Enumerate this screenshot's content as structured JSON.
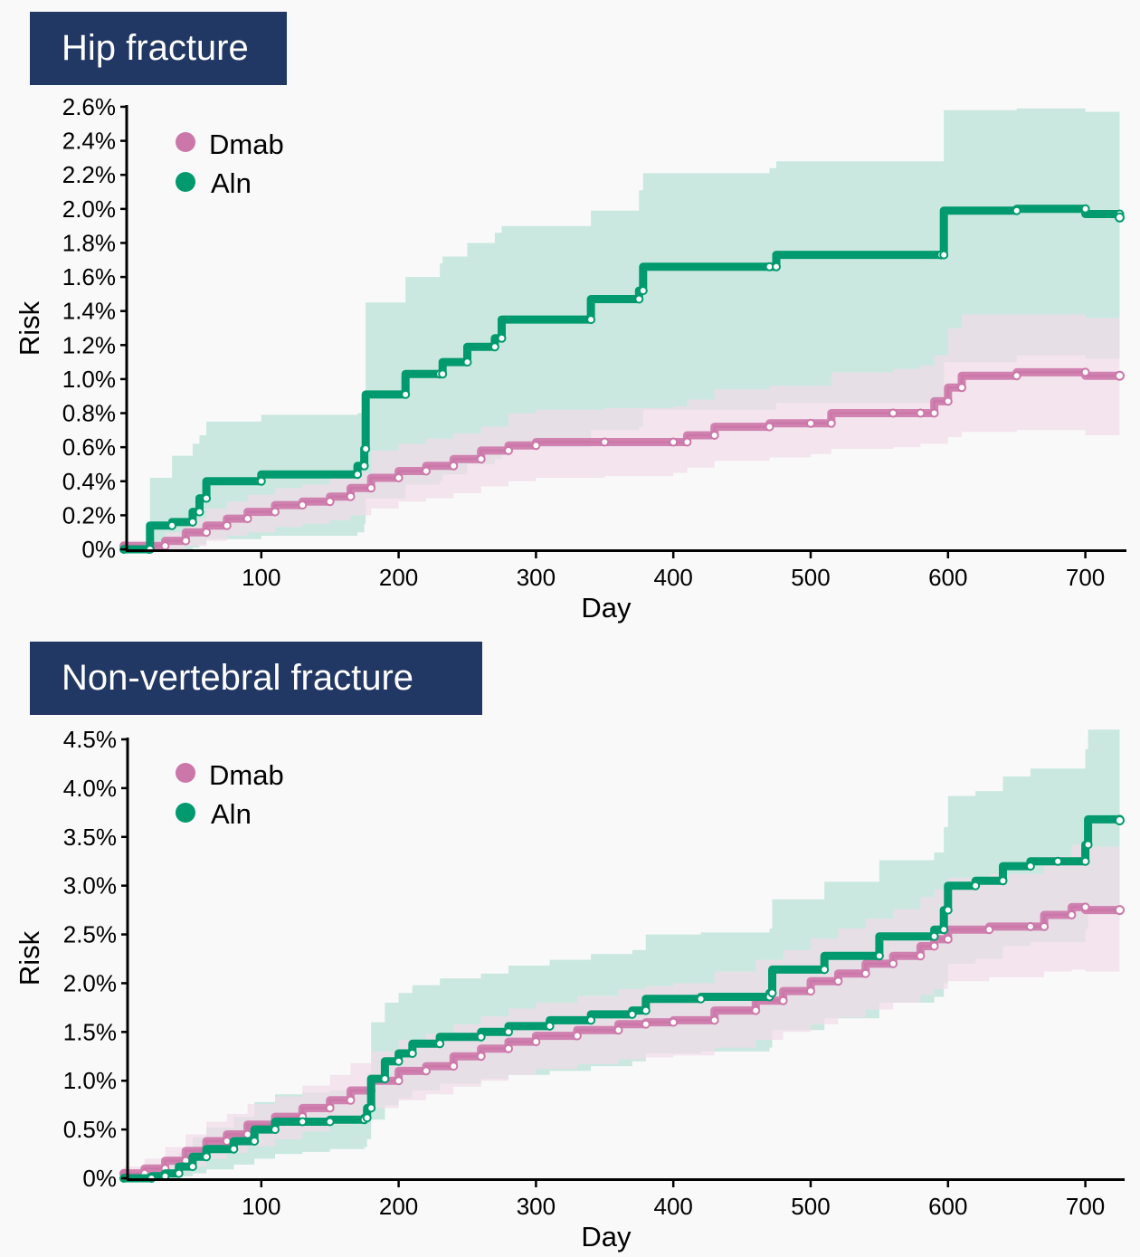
{
  "colors": {
    "title_bg": "#213764",
    "dmab": "#cc77a9",
    "dmab_band": "#f0dce8",
    "aln": "#009a6e",
    "aln_band": "#c7e7de"
  },
  "chart_data": [
    {
      "type": "line",
      "title": "Hip fracture",
      "xlabel": "Day",
      "ylabel": "Risk",
      "xlim": [
        0,
        730
      ],
      "ylim": [
        0,
        2.6
      ],
      "x_ticks": [
        100,
        200,
        300,
        400,
        500,
        600,
        700
      ],
      "x_tick_labels": [
        "100",
        "200",
        "300",
        "400",
        "500",
        "600",
        "700"
      ],
      "y_ticks": [
        0,
        0.2,
        0.4,
        0.6,
        0.8,
        1.0,
        1.2,
        1.4,
        1.6,
        1.8,
        2.0,
        2.2,
        2.4,
        2.6
      ],
      "y_tick_labels": [
        "0%",
        "0.2%",
        "0.4%",
        "0.6%",
        "0.8%",
        "1.0%",
        "1.2%",
        "1.4%",
        "1.6%",
        "1.8%",
        "2.0%",
        "2.2%",
        "2.4%",
        "2.6%"
      ],
      "grid": false,
      "legend": {
        "position": "top-left",
        "entries": [
          "Dmab",
          "Aln"
        ]
      },
      "series": [
        {
          "name": "Dmab",
          "x": [
            0,
            20,
            30,
            45,
            60,
            75,
            90,
            110,
            130,
            150,
            165,
            180,
            200,
            220,
            240,
            260,
            280,
            300,
            350,
            400,
            410,
            430,
            470,
            500,
            515,
            560,
            580,
            590,
            600,
            610,
            650,
            700,
            725
          ],
          "y": [
            0.02,
            0.02,
            0.05,
            0.1,
            0.14,
            0.18,
            0.22,
            0.26,
            0.28,
            0.31,
            0.36,
            0.42,
            0.46,
            0.49,
            0.53,
            0.58,
            0.61,
            0.63,
            0.63,
            0.63,
            0.67,
            0.72,
            0.74,
            0.74,
            0.8,
            0.8,
            0.8,
            0.87,
            0.95,
            1.02,
            1.04,
            1.02,
            1.02
          ],
          "ci_low": [
            0.0,
            0.0,
            0.0,
            0.02,
            0.05,
            0.08,
            0.1,
            0.13,
            0.15,
            0.17,
            0.2,
            0.24,
            0.28,
            0.3,
            0.33,
            0.37,
            0.4,
            0.42,
            0.43,
            0.45,
            0.48,
            0.52,
            0.54,
            0.56,
            0.59,
            0.6,
            0.62,
            0.62,
            0.66,
            0.69,
            0.7,
            0.67,
            0.67
          ],
          "ci_high": [
            0.05,
            0.05,
            0.1,
            0.18,
            0.24,
            0.28,
            0.32,
            0.36,
            0.38,
            0.42,
            0.45,
            0.58,
            0.62,
            0.65,
            0.68,
            0.72,
            0.8,
            0.82,
            0.83,
            0.84,
            0.88,
            0.94,
            0.96,
            0.96,
            1.04,
            1.06,
            1.08,
            1.14,
            1.3,
            1.38,
            1.38,
            1.36,
            1.36
          ]
        },
        {
          "name": "Aln",
          "x": [
            0,
            18,
            19,
            35,
            50,
            55,
            60,
            100,
            170,
            175,
            176,
            205,
            230,
            232,
            250,
            270,
            275,
            340,
            375,
            378,
            470,
            475,
            595,
            597,
            650,
            700,
            725
          ],
          "y": [
            0.0,
            0.0,
            0.14,
            0.16,
            0.22,
            0.3,
            0.4,
            0.44,
            0.49,
            0.59,
            0.91,
            1.03,
            1.03,
            1.1,
            1.19,
            1.24,
            1.35,
            1.47,
            1.52,
            1.66,
            1.66,
            1.73,
            1.73,
            1.99,
            2.0,
            1.97,
            1.95
          ],
          "ci_low": [
            0.0,
            0.0,
            0.0,
            0.0,
            0.01,
            0.03,
            0.06,
            0.08,
            0.1,
            0.15,
            0.3,
            0.38,
            0.4,
            0.44,
            0.5,
            0.53,
            0.6,
            0.7,
            0.72,
            0.82,
            0.82,
            0.86,
            0.85,
            1.1,
            1.14,
            1.12,
            1.08
          ],
          "ci_high": [
            0.0,
            0.0,
            0.42,
            0.55,
            0.62,
            0.67,
            0.75,
            0.79,
            0.8,
            0.8,
            1.45,
            1.6,
            1.68,
            1.72,
            1.8,
            1.86,
            1.9,
            1.99,
            2.11,
            2.21,
            2.24,
            2.28,
            2.28,
            2.58,
            2.59,
            2.57,
            2.55
          ]
        }
      ]
    },
    {
      "type": "line",
      "title": "Non-vertebral fracture",
      "xlabel": "Day",
      "ylabel": "Risk",
      "xlim": [
        0,
        730
      ],
      "ylim": [
        0,
        4.5
      ],
      "x_ticks": [
        100,
        200,
        300,
        400,
        500,
        600,
        700
      ],
      "x_tick_labels": [
        "100",
        "200",
        "300",
        "400",
        "500",
        "600",
        "700"
      ],
      "y_ticks": [
        0,
        0.5,
        1.0,
        1.5,
        2.0,
        2.5,
        3.0,
        3.5,
        4.0,
        4.5
      ],
      "y_tick_labels": [
        "0%",
        "0.5%",
        "1.0%",
        "1.5%",
        "2.0%",
        "2.5%",
        "3.0%",
        "3.5%",
        "4.0%",
        "4.5%"
      ],
      "grid": false,
      "legend": {
        "position": "top-left",
        "entries": [
          "Dmab",
          "Aln"
        ]
      },
      "series": [
        {
          "name": "Dmab",
          "x": [
            0,
            15,
            30,
            45,
            60,
            75,
            90,
            110,
            130,
            150,
            165,
            180,
            200,
            220,
            240,
            260,
            280,
            300,
            330,
            360,
            380,
            400,
            430,
            460,
            480,
            500,
            520,
            540,
            560,
            580,
            590,
            600,
            630,
            660,
            670,
            690,
            700,
            725
          ],
          "y": [
            0.05,
            0.1,
            0.18,
            0.28,
            0.38,
            0.45,
            0.55,
            0.63,
            0.72,
            0.8,
            0.9,
            1.0,
            1.1,
            1.15,
            1.25,
            1.33,
            1.4,
            1.46,
            1.52,
            1.58,
            1.6,
            1.62,
            1.72,
            1.82,
            1.92,
            2.02,
            2.1,
            2.2,
            2.28,
            2.38,
            2.45,
            2.55,
            2.58,
            2.58,
            2.7,
            2.78,
            2.75,
            2.75
          ],
          "ci_low": [
            0.0,
            0.02,
            0.06,
            0.12,
            0.2,
            0.26,
            0.33,
            0.4,
            0.48,
            0.55,
            0.62,
            0.72,
            0.8,
            0.86,
            0.94,
            1.0,
            1.06,
            1.12,
            1.17,
            1.22,
            1.24,
            1.26,
            1.34,
            1.42,
            1.5,
            1.58,
            1.65,
            1.73,
            1.8,
            1.88,
            1.94,
            2.02,
            2.06,
            2.06,
            2.12,
            2.14,
            2.12,
            2.12
          ],
          "ci_high": [
            0.12,
            0.2,
            0.32,
            0.45,
            0.58,
            0.66,
            0.76,
            0.84,
            0.95,
            1.06,
            1.18,
            1.3,
            1.42,
            1.48,
            1.58,
            1.66,
            1.74,
            1.8,
            1.87,
            1.94,
            1.97,
            2.0,
            2.12,
            2.24,
            2.34,
            2.46,
            2.56,
            2.66,
            2.76,
            2.88,
            2.96,
            3.08,
            3.12,
            3.12,
            3.3,
            3.42,
            3.4,
            3.4
          ]
        },
        {
          "name": "Aln",
          "x": [
            0,
            20,
            30,
            40,
            50,
            60,
            80,
            95,
            110,
            130,
            150,
            175,
            177,
            180,
            190,
            200,
            210,
            230,
            260,
            280,
            310,
            340,
            370,
            380,
            420,
            470,
            472,
            510,
            550,
            590,
            597,
            600,
            620,
            640,
            660,
            680,
            700,
            702,
            725
          ],
          "y": [
            0.0,
            0.02,
            0.05,
            0.12,
            0.22,
            0.3,
            0.38,
            0.5,
            0.58,
            0.58,
            0.6,
            0.62,
            0.72,
            1.02,
            1.2,
            1.28,
            1.38,
            1.45,
            1.5,
            1.56,
            1.62,
            1.68,
            1.72,
            1.84,
            1.86,
            1.9,
            2.14,
            2.28,
            2.48,
            2.55,
            2.75,
            3.0,
            3.05,
            3.2,
            3.25,
            3.25,
            3.42,
            3.68,
            3.67
          ],
          "ci_low": [
            0.0,
            0.0,
            0.0,
            0.02,
            0.05,
            0.09,
            0.14,
            0.2,
            0.25,
            0.27,
            0.3,
            0.32,
            0.4,
            0.6,
            0.75,
            0.82,
            0.9,
            0.97,
            1.02,
            1.06,
            1.1,
            1.15,
            1.2,
            1.28,
            1.3,
            1.34,
            1.52,
            1.64,
            1.8,
            1.86,
            2.0,
            2.2,
            2.25,
            2.38,
            2.42,
            2.42,
            2.56,
            2.76,
            2.75
          ],
          "ci_high": [
            0.0,
            0.08,
            0.14,
            0.26,
            0.42,
            0.52,
            0.63,
            0.78,
            0.86,
            0.88,
            0.9,
            0.92,
            1.08,
            1.6,
            1.8,
            1.9,
            1.98,
            2.05,
            2.1,
            2.18,
            2.24,
            2.3,
            2.34,
            2.5,
            2.52,
            2.56,
            2.86,
            3.04,
            3.26,
            3.34,
            3.6,
            3.92,
            3.97,
            4.12,
            4.2,
            4.2,
            4.4,
            4.6,
            4.6
          ]
        }
      ]
    }
  ]
}
